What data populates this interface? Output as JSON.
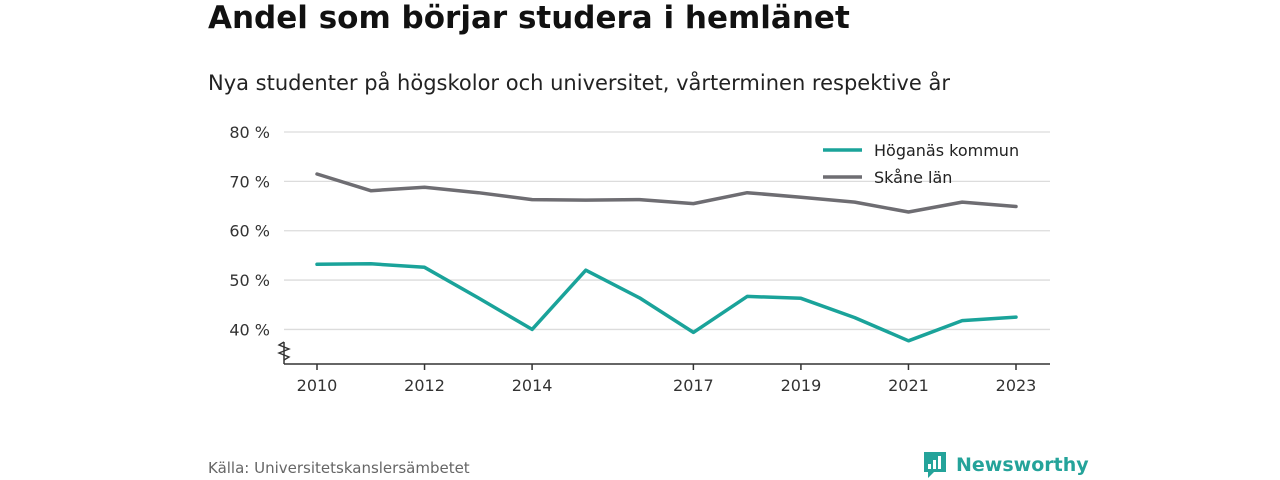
{
  "chart_data": {
    "type": "line",
    "title": "Andel som börjar studera i hemlänet",
    "subtitle": "Nya studenter på högskolor och universitet, vårterminen respektive år",
    "x": [
      2010,
      2011,
      2012,
      2013,
      2014,
      2015,
      2016,
      2017,
      2018,
      2019,
      2020,
      2021,
      2022,
      2023
    ],
    "x_ticks": [
      2010,
      2012,
      2014,
      2017,
      2019,
      2021,
      2023
    ],
    "y_ticks": [
      {
        "value": 40,
        "label": "40 %"
      },
      {
        "value": 50,
        "label": "50 %"
      },
      {
        "value": 60,
        "label": "60 %"
      },
      {
        "value": 70,
        "label": "70 %"
      },
      {
        "value": 80,
        "label": "80 %"
      }
    ],
    "ylim": [
      33,
      80
    ],
    "y_axis_break": true,
    "grid": true,
    "legend_position": "top-right",
    "series": [
      {
        "name": "Höganäs kommun",
        "color": "#1aa39a",
        "values": [
          53.2,
          53.3,
          52.6,
          46.4,
          40.0,
          52.0,
          46.4,
          39.4,
          46.7,
          46.3,
          42.4,
          37.7,
          41.8,
          42.5
        ]
      },
      {
        "name": "Skåne län",
        "color": "#6e6d72",
        "values": [
          71.5,
          68.1,
          68.8,
          67.7,
          66.3,
          66.2,
          66.3,
          65.5,
          67.7,
          66.8,
          65.8,
          63.8,
          65.8,
          64.9
        ]
      }
    ]
  },
  "footer": {
    "source": "Källa: Universitetskanslersämbetet",
    "brand": "Newsworthy",
    "brand_icon": "newsworthy-logo-icon"
  }
}
